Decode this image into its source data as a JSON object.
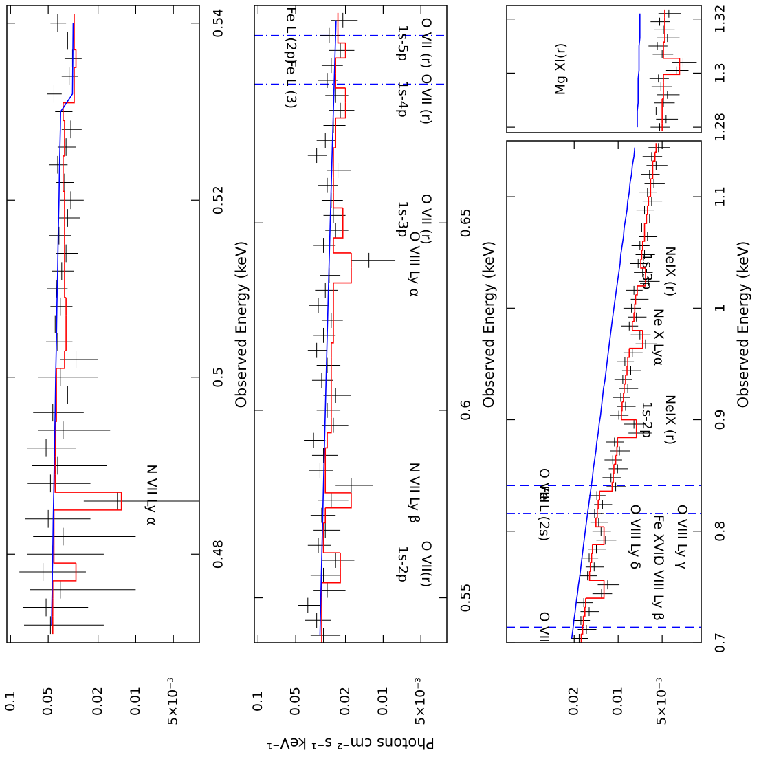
{
  "chart_data": [
    {
      "type": "errorbar",
      "color": "#000000",
      "log_y": true,
      "xlim": [
        0.47,
        0.542
      ],
      "ylim": [
        0.0031,
        0.107
      ],
      "xticks": [
        0.48,
        0.5,
        0.52,
        0.54
      ],
      "yticks": [
        0.1,
        0.05,
        0.02,
        0.01,
        {
          "value": 0.005,
          "label": "5×10⁻³"
        }
      ],
      "x_label": "Observed Energy (keV)",
      "x": [
        0.472,
        0.474,
        0.476,
        0.478,
        0.48,
        0.482,
        0.484,
        0.486,
        0.488,
        0.49,
        0.492,
        0.494,
        0.496,
        0.498,
        0.5,
        0.502,
        0.504,
        0.506,
        0.508,
        0.51,
        0.512,
        0.514,
        0.516,
        0.518,
        0.52,
        0.522,
        0.524,
        0.526,
        0.528,
        0.53,
        0.532,
        0.534,
        0.536,
        0.538,
        0.54
      ],
      "values": [
        0.048,
        0.052,
        0.04,
        0.055,
        0.046,
        0.038,
        0.05,
        0.014,
        0.048,
        0.042,
        0.052,
        0.038,
        0.046,
        0.035,
        0.04,
        0.03,
        0.042,
        0.044,
        0.04,
        0.043,
        0.039,
        0.036,
        0.041,
        0.035,
        0.033,
        0.037,
        0.042,
        0.036,
        0.033,
        0.038,
        0.045,
        0.034,
        0.032,
        0.035,
        0.042
      ],
      "errors": [
        0.03,
        0.028,
        0.03,
        0.03,
        0.028,
        0.028,
        0.027,
        0.012,
        0.025,
        0.025,
        0.022,
        0.022,
        0.02,
        0.018,
        0.02,
        0.01,
        0.01,
        0.008,
        0.008,
        0.008,
        0.008,
        0.007,
        0.008,
        0.007,
        0.007,
        0.006,
        0.007,
        0.006,
        0.006,
        0.006,
        0.006,
        0.005,
        0.005,
        0.005,
        0.006
      ],
      "model": {
        "color": "#ff0000",
        "values": [
          0.046,
          0.046,
          0.046,
          0.03,
          0.045,
          0.045,
          0.045,
          0.013,
          0.044,
          0.044,
          0.044,
          0.044,
          0.043,
          0.043,
          0.043,
          0.037,
          0.036,
          0.036,
          0.036,
          0.037,
          0.037,
          0.037,
          0.037,
          0.037,
          0.037,
          0.038,
          0.038,
          0.037,
          0.037,
          0.038,
          0.031,
          0.031,
          0.03,
          0.031,
          0.031
        ]
      },
      "continuum": {
        "color": "#0000ff",
        "values": [
          0.047,
          0.0468,
          0.0465,
          0.0463,
          0.046,
          0.0458,
          0.0456,
          0.0453,
          0.045,
          0.0448,
          0.0446,
          0.0443,
          0.044,
          0.0438,
          0.0436,
          0.0433,
          0.043,
          0.0428,
          0.0426,
          0.0423,
          0.042,
          0.0418,
          0.0416,
          0.0413,
          0.041,
          0.0408,
          0.0406,
          0.0403,
          0.04,
          0.0398,
          0.032,
          0.0319,
          0.0318,
          0.0317,
          0.0316
        ]
      },
      "annotations": [
        {
          "x": 0.4867,
          "lines": [
            "N VII Ly α"
          ]
        }
      ]
    },
    {
      "type": "errorbar",
      "color": "#000000",
      "log_y": true,
      "xlim": [
        0.538,
        0.708
      ],
      "ylim": [
        0.0031,
        0.107
      ],
      "xticks": [
        0.55,
        0.6,
        0.65
      ],
      "yticks": [
        0.1,
        0.05,
        0.02,
        0.01,
        {
          "value": 0.005,
          "label": "5×10⁻³"
        }
      ],
      "x_label": "Observed Energy (keV)",
      "y_label": "Photons cm⁻² s⁻¹ keV⁻¹",
      "x": [
        0.54,
        0.544,
        0.548,
        0.552,
        0.556,
        0.56,
        0.564,
        0.568,
        0.572,
        0.576,
        0.58,
        0.584,
        0.588,
        0.592,
        0.596,
        0.6,
        0.604,
        0.608,
        0.612,
        0.616,
        0.62,
        0.624,
        0.628,
        0.632,
        0.636,
        0.64,
        0.644,
        0.648,
        0.652,
        0.656,
        0.66,
        0.664,
        0.668,
        0.672,
        0.676,
        0.68,
        0.684,
        0.688,
        0.692,
        0.696,
        0.7,
        0.704
      ],
      "values": [
        0.03,
        0.034,
        0.04,
        0.028,
        0.03,
        0.024,
        0.033,
        0.029,
        0.031,
        0.026,
        0.018,
        0.032,
        0.03,
        0.036,
        0.025,
        0.028,
        0.024,
        0.031,
        0.028,
        0.034,
        0.03,
        0.026,
        0.033,
        0.029,
        0.027,
        0.013,
        0.03,
        0.024,
        0.025,
        0.026,
        0.028,
        0.023,
        0.034,
        0.029,
        0.025,
        0.022,
        0.024,
        0.028,
        0.026,
        0.022,
        0.027,
        0.021
      ],
      "errors": [
        0.008,
        0.008,
        0.008,
        0.008,
        0.008,
        0.007,
        0.007,
        0.007,
        0.007,
        0.007,
        0.006,
        0.007,
        0.007,
        0.007,
        0.006,
        0.006,
        0.006,
        0.006,
        0.006,
        0.006,
        0.006,
        0.005,
        0.006,
        0.006,
        0.005,
        0.005,
        0.006,
        0.005,
        0.005,
        0.005,
        0.005,
        0.005,
        0.006,
        0.005,
        0.005,
        0.005,
        0.005,
        0.005,
        0.005,
        0.005,
        0.005,
        0.005
      ],
      "model": {
        "color": "#ff0000",
        "values": [
          0.031,
          0.031,
          0.031,
          0.031,
          0.022,
          0.022,
          0.03,
          0.03,
          0.029,
          0.018,
          0.029,
          0.029,
          0.029,
          0.028,
          0.026,
          0.026,
          0.026,
          0.026,
          0.026,
          0.026,
          0.025,
          0.025,
          0.025,
          0.025,
          0.018,
          0.018,
          0.025,
          0.021,
          0.021,
          0.025,
          0.025,
          0.025,
          0.025,
          0.024,
          0.024,
          0.02,
          0.02,
          0.024,
          0.024,
          0.02,
          0.023,
          0.023
        ]
      },
      "continuum": {
        "color": "#0000ff",
        "values": [
          0.032,
          0.0318,
          0.0316,
          0.0314,
          0.0312,
          0.031,
          0.0308,
          0.0306,
          0.0304,
          0.0302,
          0.03,
          0.0298,
          0.0296,
          0.0294,
          0.0292,
          0.029,
          0.0288,
          0.0286,
          0.0284,
          0.0282,
          0.028,
          0.0278,
          0.0276,
          0.0274,
          0.0272,
          0.027,
          0.0268,
          0.0266,
          0.0264,
          0.0262,
          0.026,
          0.0258,
          0.0256,
          0.0254,
          0.0252,
          0.025,
          0.0248,
          0.0246,
          0.0244,
          0.0242,
          0.024,
          0.0238
        ]
      },
      "annotations": [
        {
          "x": 0.559,
          "lines": [
            "O VII(r)",
            "1s-2p"
          ]
        },
        {
          "x": 0.578,
          "lines": [
            "N VII Ly β"
          ]
        },
        {
          "x": 0.639,
          "lines": [
            "O VIII Ly α"
          ]
        },
        {
          "x": 0.651,
          "lines": [
            "O VII (r)",
            "1s-3p"
          ]
        },
        {
          "x": 0.683,
          "lines": [
            "O VII (r)",
            "1s-4p"
          ]
        },
        {
          "x": 0.698,
          "lines": [
            "O VII (r)",
            "1s-5p"
          ]
        }
      ],
      "markers": [
        {
          "x": 0.687,
          "style": "dash-dot",
          "color": "#0000ff",
          "label": "Fe L (3)"
        },
        {
          "x": 0.7,
          "style": "dash-dot",
          "color": "#0000ff",
          "label": "Fe L (2p)"
        }
      ]
    },
    {
      "type": "errorbar",
      "color": "#000000",
      "log_y": true,
      "xlim": [
        0.7,
        1.15
      ],
      "ylim": [
        0.0027,
        0.058
      ],
      "xticks": [
        0.7,
        0.8,
        0.9,
        1,
        1.1
      ],
      "yticks": [
        0.02,
        0.01,
        {
          "value": 0.005,
          "label": "5×10⁻³"
        }
      ],
      "x_label": "Observed Energy (keV)",
      "x": [
        0.704,
        0.712,
        0.72,
        0.728,
        0.736,
        0.744,
        0.752,
        0.76,
        0.768,
        0.776,
        0.784,
        0.792,
        0.8,
        0.808,
        0.816,
        0.824,
        0.832,
        0.84,
        0.848,
        0.856,
        0.864,
        0.872,
        0.88,
        0.888,
        0.896,
        0.904,
        0.912,
        0.92,
        0.928,
        0.936,
        0.944,
        0.952,
        0.96,
        0.968,
        0.976,
        0.984,
        0.992,
        1.0,
        1.008,
        1.016,
        1.024,
        1.032,
        1.04,
        1.048,
        1.056,
        1.064,
        1.072,
        1.08,
        1.088,
        1.096,
        1.104,
        1.112,
        1.12,
        1.128,
        1.136,
        1.144
      ],
      "values": [
        0.0185,
        0.0165,
        0.018,
        0.0158,
        0.0172,
        0.013,
        0.0118,
        0.0162,
        0.0146,
        0.0158,
        0.0141,
        0.0122,
        0.0131,
        0.0136,
        0.0145,
        0.0128,
        0.014,
        0.0104,
        0.0112,
        0.0101,
        0.0109,
        0.0098,
        0.0106,
        0.0072,
        0.0078,
        0.0099,
        0.0089,
        0.0096,
        0.0086,
        0.0093,
        0.0082,
        0.009,
        0.008,
        0.0065,
        0.0071,
        0.0084,
        0.0075,
        0.0081,
        0.0072,
        0.0078,
        0.0062,
        0.0068,
        0.0073,
        0.0066,
        0.0071,
        0.0063,
        0.0069,
        0.0061,
        0.0066,
        0.0059,
        0.0063,
        0.0057,
        0.0061,
        0.0055,
        0.0059,
        0.0053
      ],
      "errors": [
        0.0025,
        0.0024,
        0.0024,
        0.0023,
        0.0023,
        0.002,
        0.002,
        0.0022,
        0.0021,
        0.0021,
        0.002,
        0.0019,
        0.0019,
        0.0019,
        0.0019,
        0.0018,
        0.0018,
        0.0016,
        0.0016,
        0.0015,
        0.0015,
        0.0015,
        0.0015,
        0.0013,
        0.0013,
        0.0014,
        0.0013,
        0.0013,
        0.0013,
        0.0013,
        0.0012,
        0.0012,
        0.0012,
        0.0011,
        0.0011,
        0.0011,
        0.0011,
        0.0011,
        0.001,
        0.001,
        0.001,
        0.001,
        0.001,
        0.001,
        0.001,
        0.0009,
        0.0009,
        0.0009,
        0.0009,
        0.0009,
        0.0009,
        0.0009,
        0.0009,
        0.0009,
        0.0009,
        0.0009
      ],
      "model": {
        "color": "#ff0000",
        "values": [
          0.0179,
          0.0175,
          0.0173,
          0.0169,
          0.0167,
          0.0125,
          0.0125,
          0.0157,
          0.0155,
          0.0152,
          0.015,
          0.0125,
          0.0125,
          0.0142,
          0.0139,
          0.0137,
          0.0134,
          0.011,
          0.0108,
          0.0107,
          0.0104,
          0.0102,
          0.0101,
          0.0075,
          0.0075,
          0.0095,
          0.0094,
          0.0092,
          0.0091,
          0.0089,
          0.0087,
          0.0086,
          0.0084,
          0.0068,
          0.0068,
          0.008,
          0.0078,
          0.0077,
          0.0076,
          0.0074,
          0.0065,
          0.0065,
          0.007,
          0.0069,
          0.0068,
          0.0066,
          0.0066,
          0.0064,
          0.0063,
          0.0062,
          0.006,
          0.006,
          0.0058,
          0.0058,
          0.0056,
          0.0055
        ]
      },
      "continuum": {
        "color": "#0000ff",
        "values": [
          0.0208,
          0.0204,
          0.0201,
          0.0197,
          0.0194,
          0.019,
          0.0187,
          0.0183,
          0.018,
          0.0177,
          0.0174,
          0.0171,
          0.0168,
          0.0165,
          0.0162,
          0.0159,
          0.0156,
          0.0153,
          0.015,
          0.0148,
          0.0145,
          0.0142,
          0.014,
          0.0137,
          0.0135,
          0.0132,
          0.013,
          0.0128,
          0.0126,
          0.0123,
          0.0121,
          0.0119,
          0.0117,
          0.0115,
          0.0113,
          0.0111,
          0.0109,
          0.0107,
          0.0105,
          0.0103,
          0.0101,
          0.0099,
          0.0097,
          0.0096,
          0.0094,
          0.0092,
          0.0091,
          0.0089,
          0.0087,
          0.0086,
          0.0084,
          0.0083,
          0.0081,
          0.008,
          0.0078,
          0.0077
        ]
      },
      "annotations": [
        {
          "x": 0.749,
          "lines": [
            "O VIII Ly β"
          ]
        },
        {
          "x": 0.795,
          "lines": [
            "O VIII Ly γ",
            "Fe XVII",
            "O VIII Ly δ"
          ]
        },
        {
          "x": 0.9,
          "lines": [
            "NeIX (r)",
            "1s-2p"
          ]
        },
        {
          "x": 0.974,
          "lines": [
            "Ne X Lyα"
          ]
        },
        {
          "x": 1.033,
          "lines": [
            "NeIX (r)",
            "1s-3p"
          ]
        }
      ],
      "markers": [
        {
          "x": 0.714,
          "style": "dashed",
          "color": "#0000ff",
          "label": "O VII"
        },
        {
          "x": 0.816,
          "style": "dash-dot",
          "color": "#0000ff",
          "label": "Fe L (2s)"
        },
        {
          "x": 0.841,
          "style": "dashed",
          "color": "#0000ff",
          "label": "O VIII"
        }
      ]
    },
    {
      "type": "errorbar",
      "color": "#000000",
      "log_y": true,
      "xlim": [
        1.278,
        1.325
      ],
      "ylim": [
        0.0027,
        0.058
      ],
      "xticks": [
        1.28,
        1.3,
        1.32
      ],
      "label": "Mg XI(r)",
      "x": [
        1.28,
        1.283,
        1.286,
        1.289,
        1.292,
        1.295,
        1.298,
        1.301,
        1.304,
        1.307,
        1.31,
        1.313,
        1.316,
        1.319,
        1.322
      ],
      "values": [
        0.0052,
        0.0047,
        0.0055,
        0.0049,
        0.0046,
        0.0051,
        0.0053,
        0.004,
        0.0036,
        0.005,
        0.0054,
        0.0046,
        0.0049,
        0.0052,
        0.0045
      ],
      "errors": [
        0.0008,
        0.0008,
        0.0008,
        0.0008,
        0.0008,
        0.0008,
        0.0008,
        0.0007,
        0.0007,
        0.0008,
        0.0008,
        0.0008,
        0.0008,
        0.0008,
        0.0008
      ],
      "model": {
        "color": "#ff0000",
        "values": [
          0.005,
          0.005,
          0.005,
          0.005,
          0.0049,
          0.0049,
          0.0049,
          0.0038,
          0.0038,
          0.0049,
          0.0049,
          0.0048,
          0.0048,
          0.0048,
          0.0048
        ]
      },
      "continuum": {
        "color": "#0000ff",
        "values": [
          0.0074,
          0.0074,
          0.0074,
          0.0073,
          0.0073,
          0.0073,
          0.0073,
          0.0072,
          0.0072,
          0.0072,
          0.0072,
          0.0071,
          0.0071,
          0.0071,
          0.0071
        ]
      }
    }
  ]
}
